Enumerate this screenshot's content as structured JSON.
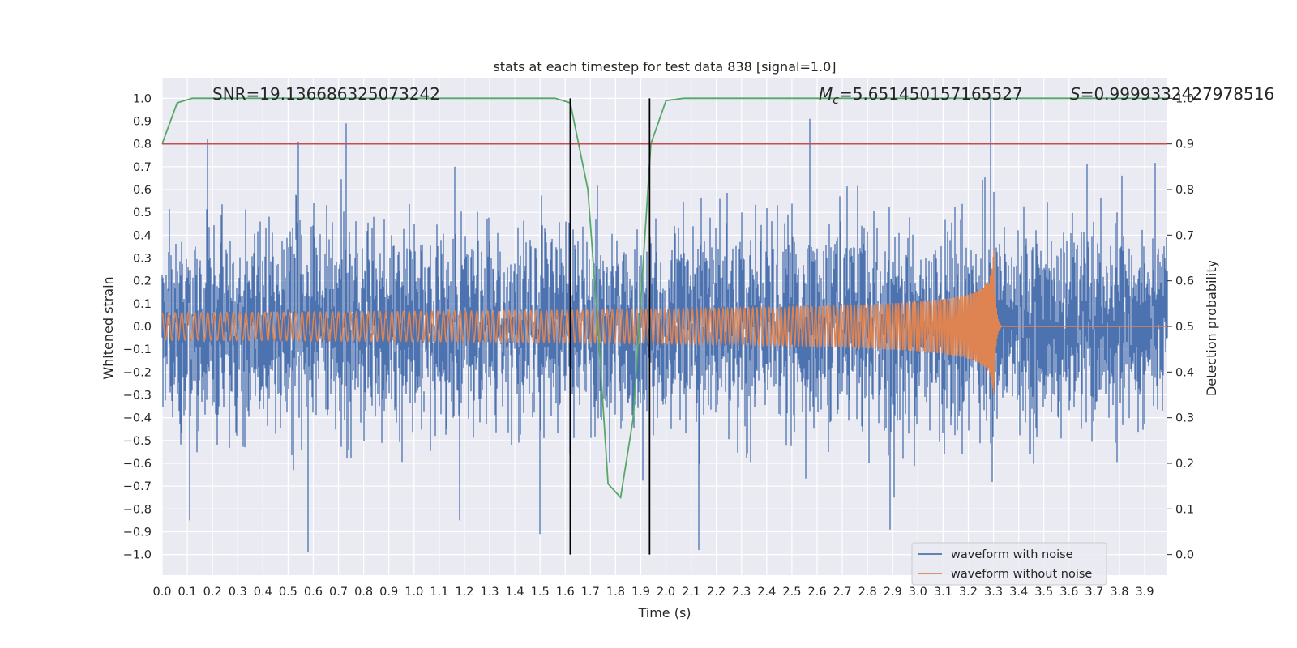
{
  "chart_data": {
    "type": "line",
    "title": "stats at each timestep for test data 838 [signal=1.0]",
    "xlabel": "Time (s)",
    "ylabel": "Whitened strain",
    "y2label": "Detection probability",
    "xlim": [
      0.0,
      3.99
    ],
    "ylim": [
      -1.09,
      1.09
    ],
    "y2lim": [
      -0.045,
      1.045
    ],
    "grid": true,
    "legend_position": "lower-right",
    "x_ticks": [
      "0.0",
      "0.1",
      "0.2",
      "0.3",
      "0.4",
      "0.5",
      "0.6",
      "0.7",
      "0.8",
      "0.9",
      "1.0",
      "1.1",
      "1.2",
      "1.3",
      "1.4",
      "1.5",
      "1.6",
      "1.7",
      "1.8",
      "1.9",
      "2.0",
      "2.1",
      "2.2",
      "2.3",
      "2.4",
      "2.5",
      "2.6",
      "2.7",
      "2.8",
      "2.9",
      "3.0",
      "3.1",
      "3.2",
      "3.3",
      "3.4",
      "3.5",
      "3.6",
      "3.7",
      "3.8",
      "3.9"
    ],
    "y_ticks": [
      "1.0",
      "0.9",
      "0.8",
      "0.7",
      "0.6",
      "0.5",
      "0.4",
      "0.3",
      "0.2",
      "0.1",
      "0.0",
      "−0.1",
      "−0.2",
      "−0.3",
      "−0.4",
      "−0.5",
      "−0.6",
      "−0.7",
      "−0.8",
      "−0.9",
      "−1.0"
    ],
    "y2_ticks": [
      "1.0",
      "0.9",
      "0.8",
      "0.7",
      "0.6",
      "0.5",
      "0.4",
      "0.3",
      "0.2",
      "0.1",
      "0.0"
    ],
    "annotations": {
      "snr": "SNR=19.136686325073242",
      "mc_symbol": "M",
      "mc_sub": "c",
      "mc_value": "=5.651450157165527",
      "s_symbol": "S",
      "s_value": "=0.9999332427978516"
    },
    "series": [
      {
        "name": "waveform with noise",
        "color": "#4c72b0",
        "axis": "left",
        "description_of_values": "whitened noisy strain, roughly +/-0.45 typical, peaks near +/-1.0",
        "peak_points": [
          [
            0.18,
            0.82
          ],
          [
            0.54,
            0.81
          ],
          [
            0.73,
            0.89
          ],
          [
            0.58,
            -0.99
          ],
          [
            0.11,
            -0.85
          ],
          [
            1.18,
            -0.85
          ],
          [
            1.5,
            -0.91
          ],
          [
            2.13,
            -0.98
          ],
          [
            2.57,
            0.91
          ],
          [
            2.89,
            -0.89
          ],
          [
            3.29,
            1.0
          ]
        ]
      },
      {
        "name": "waveform without noise",
        "color": "#dd8452",
        "axis": "left",
        "description_of_values": "chirp: amplitude ~0.06 at t=0 growing to ~0.43 at merger t=3.30, ringdown ending at 3.33",
        "merger_time": 3.3,
        "end_time": 3.33,
        "amplitude_start": 0.06,
        "amplitude_peak": 0.43
      },
      {
        "color": "#55a868",
        "axis": "right",
        "x": [
          0.0,
          0.06,
          0.12,
          0.2,
          1.56,
          1.62,
          1.69,
          1.73,
          1.77,
          1.82,
          1.87,
          1.94,
          2.0,
          2.07,
          2.14,
          3.99
        ],
        "y": [
          0.9,
          0.99,
          1.0,
          1.0,
          1.0,
          0.99,
          0.8,
          0.5,
          0.155,
          0.125,
          0.3,
          0.9,
          0.995,
          1.0,
          1.0,
          1.0
        ]
      }
    ],
    "threshold_line": {
      "color": "#c44e52",
      "y2": 0.9
    },
    "vertical_lines": {
      "color": "#000000",
      "x": [
        1.62,
        1.935
      ]
    },
    "legend": [
      "waveform with noise",
      "waveform without noise"
    ]
  }
}
